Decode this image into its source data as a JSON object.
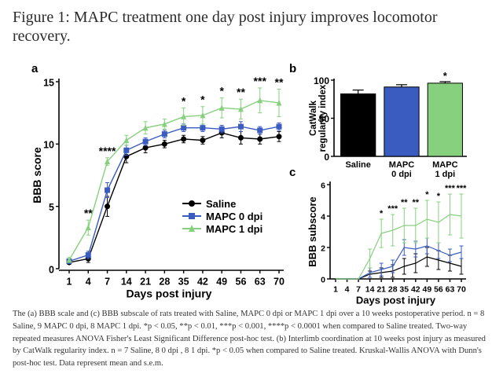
{
  "figure_title": "Figure 1: MAPC treatment one day post injury improves locomotor recovery.",
  "caption": {
    "p1": "The (a) BBB scale and (c) BBB subscale of rats treated with Saline, MAPC 0 dpi or MAPC 1 dpi over a 10 weeks postoperative period.",
    "p2": "n = 8 Saline, 9 MAPC 0 dpi, 8 MAPC 1 dpi. *p < 0.05, **p < 0.01, ***p < 0.001, ****p < 0.0001 when compared to Saline treated.",
    "p3": "Two-way repeated measures ANOVA Fisher's Least Significant Difference post-hoc test.",
    "p4": "(b) Interlimb coordination at 10 weeks post injury as measured by CatWalk regularity index.",
    "p5": "n = 7 Saline, 8 0 dpi , 8 1 dpi. *p < 0.05 when compared to Saline treated. Kruskal-Wallis ANOVA with Dunn's post-hoc test. Data represent mean and s.e.m."
  },
  "colors": {
    "saline": "#000000",
    "mapc0": "#3a5bbf",
    "mapc1": "#86d07e",
    "axis": "#000000"
  },
  "chart_data": [
    {
      "panel": "a",
      "type": "line",
      "xlabel": "Days post injury",
      "ylabel": "BBB score",
      "x": [
        1,
        4,
        7,
        14,
        21,
        28,
        35,
        42,
        49,
        56,
        63,
        70
      ],
      "x_tick_labels": [
        "1",
        "4",
        "7",
        "14",
        "21",
        "28",
        "35",
        "42",
        "49",
        "56",
        "63",
        "70"
      ],
      "ylim": [
        0,
        15
      ],
      "y_ticks": [
        0,
        5,
        10,
        15
      ],
      "y_tick_labels": [
        "0",
        "5",
        "10",
        "15"
      ],
      "legend_position": "center-right",
      "series": [
        {
          "name": "Saline",
          "color": "#000000",
          "marker": "circle",
          "values": [
            0.5,
            0.8,
            5.0,
            9.0,
            9.7,
            10.0,
            10.4,
            10.3,
            10.9,
            10.5,
            10.4,
            10.6
          ],
          "errors": [
            0.1,
            0.3,
            0.8,
            0.5,
            0.4,
            0.3,
            0.3,
            0.3,
            0.4,
            0.5,
            0.4,
            0.4
          ]
        },
        {
          "name": "MAPC 0 dpi",
          "color": "#3a5bbf",
          "marker": "square",
          "values": [
            0.6,
            1.1,
            6.3,
            9.5,
            10.2,
            10.8,
            11.3,
            11.3,
            11.2,
            11.4,
            11.1,
            11.4
          ],
          "errors": [
            0.1,
            0.3,
            0.6,
            0.4,
            0.3,
            0.3,
            0.3,
            0.3,
            0.3,
            0.4,
            0.3,
            0.3
          ]
        },
        {
          "name": "MAPC 1 dpi",
          "color": "#86d07e",
          "marker": "triangle",
          "values": [
            0.7,
            3.3,
            8.6,
            10.3,
            11.3,
            11.6,
            12.2,
            12.3,
            12.9,
            12.8,
            13.5,
            13.3
          ],
          "errors": [
            0.2,
            0.6,
            0.3,
            0.4,
            0.5,
            0.4,
            0.7,
            0.7,
            0.8,
            0.8,
            1.0,
            1.1
          ]
        }
      ],
      "annotations": [
        {
          "x": 4,
          "label": "**"
        },
        {
          "x": 7,
          "label": "****"
        },
        {
          "x": 35,
          "label": "*"
        },
        {
          "x": 42,
          "label": "*"
        },
        {
          "x": 49,
          "label": "*"
        },
        {
          "x": 56,
          "label": "**"
        },
        {
          "x": 63,
          "label": "***"
        },
        {
          "x": 70,
          "label": "**"
        }
      ]
    },
    {
      "panel": "b",
      "type": "bar",
      "ylabel": "CatWalk regularity index",
      "categories": [
        "Saline",
        "MAPC 0 dpi",
        "MAPC 1 dpi"
      ],
      "category_lines": [
        [
          "Saline"
        ],
        [
          "MAPC",
          "0 dpi"
        ],
        [
          "MAPC",
          "1 dpi"
        ]
      ],
      "values": [
        82,
        91,
        96
      ],
      "errors": [
        5,
        3,
        2
      ],
      "colors": [
        "#000000",
        "#3a5bbf",
        "#86d07e"
      ],
      "ylim": [
        0,
        100
      ],
      "y_ticks": [
        0,
        50,
        100
      ],
      "y_tick_labels": [
        "0",
        "50",
        "100"
      ],
      "annotations": [
        {
          "index": 2,
          "label": "*"
        }
      ]
    },
    {
      "panel": "c",
      "type": "line",
      "xlabel": "Days post injury",
      "ylabel": "BBB subscore",
      "x": [
        1,
        4,
        7,
        14,
        21,
        28,
        35,
        42,
        49,
        56,
        63,
        70
      ],
      "x_tick_labels": [
        "1",
        "4",
        "7",
        "14",
        "21",
        "28",
        "35",
        "42",
        "49",
        "56",
        "63",
        "70"
      ],
      "ylim": [
        0,
        6
      ],
      "y_ticks": [
        0,
        2,
        4,
        6
      ],
      "y_tick_labels": [
        "0",
        "2",
        "4",
        "6"
      ],
      "series": [
        {
          "name": "Saline",
          "color": "#000000",
          "values": [
            0,
            0,
            0,
            0.3,
            0.4,
            0.5,
            0.8,
            1.0,
            1.4,
            1.2,
            1.0,
            0.8
          ],
          "errors": [
            0,
            0,
            0,
            0.2,
            0.3,
            0.4,
            0.5,
            0.6,
            0.6,
            0.6,
            0.5,
            0.5
          ]
        },
        {
          "name": "MAPC 0 dpi",
          "color": "#3a5bbf",
          "values": [
            0,
            0,
            0,
            0.4,
            0.6,
            0.8,
            2.0,
            1.9,
            2.1,
            1.8,
            1.5,
            1.7
          ],
          "errors": [
            0,
            0,
            0,
            0.3,
            0.4,
            0.4,
            0.5,
            0.5,
            0.5,
            0.5,
            0.4,
            0.4
          ]
        },
        {
          "name": "MAPC 1 dpi",
          "color": "#86d07e",
          "values": [
            0,
            0,
            0,
            1.3,
            2.9,
            3.1,
            3.4,
            3.4,
            3.8,
            3.6,
            4.1,
            4.0
          ],
          "errors": [
            0,
            0,
            0,
            0.6,
            0.9,
            1.0,
            1.1,
            1.1,
            1.2,
            1.3,
            1.3,
            1.4
          ]
        }
      ],
      "annotations": [
        {
          "x": 21,
          "label": "*"
        },
        {
          "x": 28,
          "label": "***"
        },
        {
          "x": 35,
          "label": "**"
        },
        {
          "x": 42,
          "label": "**"
        },
        {
          "x": 49,
          "label": "*"
        },
        {
          "x": 56,
          "label": "*"
        },
        {
          "x": 63,
          "label": "***"
        },
        {
          "x": 70,
          "label": "***"
        }
      ]
    }
  ]
}
